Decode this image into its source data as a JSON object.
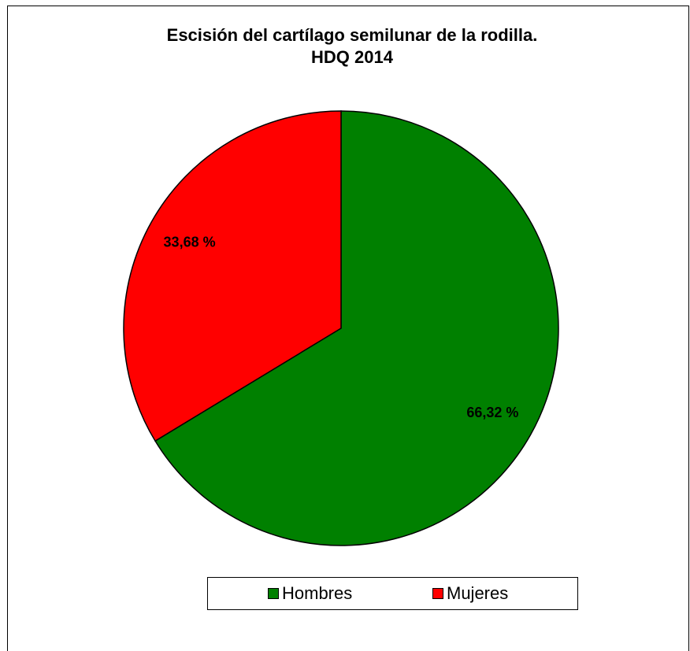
{
  "chart_data": {
    "type": "pie",
    "title": "Escisión del cartílago semilunar de la rodilla.",
    "subtitle": "HDQ 2014",
    "categories": [
      "Hombres",
      "Mujeres"
    ],
    "values": [
      66.32,
      33.68
    ],
    "value_labels": [
      "66,32 %",
      "33,68 %"
    ],
    "colors": [
      "#008000",
      "#ff0000"
    ],
    "legend": "bottom"
  }
}
